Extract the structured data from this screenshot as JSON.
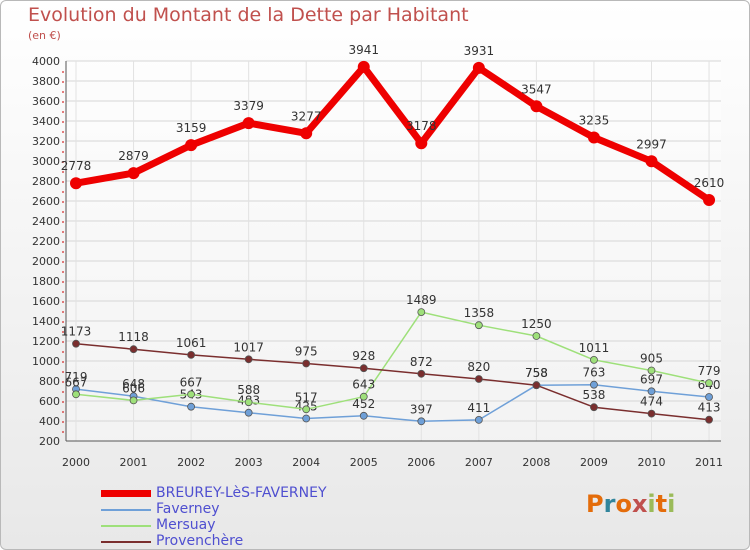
{
  "title": "Evolution du Montant de la Dette par Habitant",
  "unit": "(en €)",
  "logo": {
    "text": "Proxiti",
    "letters": [
      "P",
      "r",
      "o",
      "x",
      "i",
      "t",
      "i"
    ],
    "colors": [
      "#e46c0a",
      "#31859c",
      "#e46c0a",
      "#c0504d",
      "#9bbb59",
      "#e46c0a",
      "#9bbb59"
    ]
  },
  "chart_data": {
    "type": "line",
    "x": [
      "2000",
      "2001",
      "2002",
      "2003",
      "2004",
      "2005",
      "2006",
      "2007",
      "2008",
      "2009",
      "2010",
      "2011"
    ],
    "ylim": [
      200,
      4000
    ],
    "yticks": [
      "200",
      "400",
      "600",
      "800",
      "1000",
      "1200",
      "1400",
      "1600",
      "1800",
      "2000",
      "2200",
      "2400",
      "2600",
      "2800",
      "3000",
      "3200",
      "3400",
      "3600",
      "3800",
      "4000"
    ],
    "grid": true,
    "series": [
      {
        "name": "BREUREY-LèS-FAVERNEY",
        "color": "#ee0000",
        "values": [
          2778,
          2879,
          3159,
          3379,
          3277,
          3941,
          3178,
          3931,
          3547,
          3235,
          2997,
          2610
        ],
        "labels": [
          "2778",
          "2879",
          "3159",
          "3379",
          "3277",
          "3941",
          "3178",
          "3931",
          "3547",
          "3235",
          "2997",
          "2610"
        ]
      },
      {
        "name": "Faverney",
        "color": "#6fa0d8",
        "values": [
          719,
          648,
          543,
          483,
          425,
          452,
          397,
          411,
          758,
          763,
          697,
          640
        ],
        "labels": [
          "719",
          "648",
          "543",
          "483",
          "425",
          "452",
          "397",
          "411",
          "758",
          "763",
          "697",
          "640"
        ]
      },
      {
        "name": "Mersuay",
        "color": "#9ee07a",
        "values": [
          667,
          606,
          667,
          588,
          517,
          643,
          1489,
          1358,
          1250,
          1011,
          905,
          779
        ],
        "labels": [
          "667",
          "606",
          "667",
          "588",
          "517",
          "643",
          "1489",
          "1358",
          "1250",
          "1011",
          "905",
          "779"
        ]
      },
      {
        "name": "Provenchère",
        "color": "#7a2e2e",
        "values": [
          1173,
          1118,
          1061,
          1017,
          975,
          928,
          872,
          820,
          758,
          538,
          474,
          413
        ],
        "labels": [
          "1173",
          "1118",
          "1061",
          "1017",
          "975",
          "928",
          "872",
          "820",
          "758",
          "538",
          "474",
          "413"
        ]
      }
    ]
  }
}
